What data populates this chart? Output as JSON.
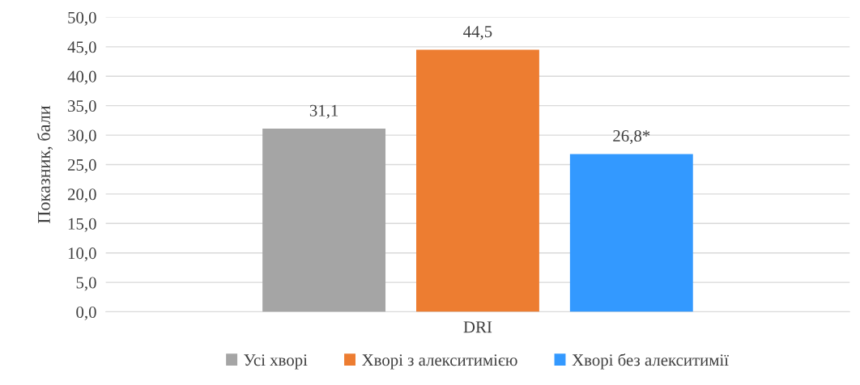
{
  "chart_data": {
    "type": "bar",
    "ylabel": "Показник, бали",
    "categories": [
      "DRI"
    ],
    "series": [
      {
        "name": "Усі хворі",
        "color": "#a5a5a5",
        "values": [
          31.1
        ],
        "value_labels": [
          "31,1"
        ]
      },
      {
        "name": "Хворі з алекситимією",
        "color": "#ed7d31",
        "values": [
          44.5
        ],
        "value_labels": [
          "44,5"
        ]
      },
      {
        "name": "Хворі без алекситимії",
        "color": "#3399ff",
        "values": [
          26.8
        ],
        "value_labels": [
          "26,8*"
        ]
      }
    ],
    "ylim": [
      0,
      50
    ],
    "yticks": [
      {
        "value": 0,
        "label": "0,0"
      },
      {
        "value": 5,
        "label": "5,0"
      },
      {
        "value": 10,
        "label": "10,0"
      },
      {
        "value": 15,
        "label": "15,0"
      },
      {
        "value": 20,
        "label": "20,0"
      },
      {
        "value": 25,
        "label": "25,0"
      },
      {
        "value": 30,
        "label": "30,0"
      },
      {
        "value": 35,
        "label": "35,0"
      },
      {
        "value": 40,
        "label": "40,0"
      },
      {
        "value": 45,
        "label": "45,0"
      },
      {
        "value": 50,
        "label": "50,0"
      }
    ],
    "grid": "y",
    "legend": "bottom"
  }
}
